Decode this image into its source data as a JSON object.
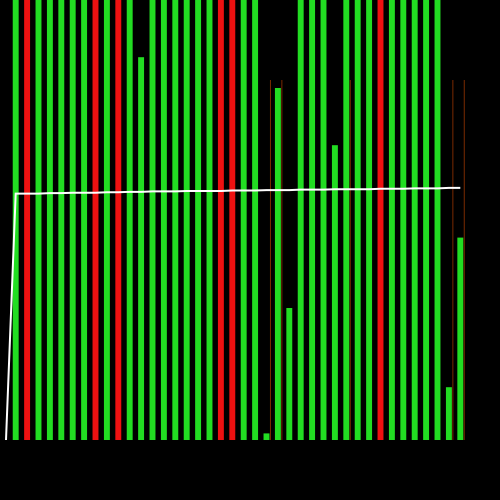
{
  "chart_data": {
    "type": "bar",
    "title": "",
    "subtitle": "",
    "xlabel": "",
    "ylabel": "",
    "ylim": [
      0,
      100
    ],
    "grid": false,
    "legend": "none",
    "colors": {
      "background": "#000000",
      "up": "#22dd22",
      "down": "#ee1111",
      "overlay_line": "#ffffff",
      "marker_line": "#7a2a00"
    },
    "categories": [
      "",
      "",
      "",
      "",
      "",
      "",
      "",
      "",
      "",
      "",
      "",
      "",
      "",
      "",
      "",
      "",
      "",
      "",
      "",
      "",
      "",
      "",
      "",
      "",
      "",
      "",
      "",
      "",
      "",
      "",
      "",
      "",
      "",
      "",
      "",
      "",
      "",
      "",
      "",
      ""
    ],
    "series": [
      {
        "values": [
          100,
          100,
          100,
          100,
          100,
          100,
          100,
          100,
          100,
          100,
          100,
          87,
          100,
          100,
          100,
          100,
          100,
          100,
          100,
          100,
          100,
          100,
          1.5,
          80,
          30,
          100,
          100,
          100,
          67,
          100,
          100,
          100,
          100,
          100,
          100,
          100,
          100,
          100,
          12,
          46
        ],
        "colors": [
          "#22dd22",
          "#ee1111",
          "#22dd22",
          "#22dd22",
          "#22dd22",
          "#22dd22",
          "#22dd22",
          "#ee1111",
          "#22dd22",
          "#ee1111",
          "#22dd22",
          "#22dd22",
          "#22dd22",
          "#22dd22",
          "#22dd22",
          "#22dd22",
          "#22dd22",
          "#22dd22",
          "#ee1111",
          "#ee1111",
          "#22dd22",
          "#22dd22",
          "#22dd22",
          "#22dd22",
          "#22dd22",
          "#22dd22",
          "#22dd22",
          "#22dd22",
          "#22dd22",
          "#22dd22",
          "#22dd22",
          "#22dd22",
          "#ee1111",
          "#22dd22",
          "#22dd22",
          "#22dd22",
          "#22dd22",
          "#22dd22",
          "#22dd22",
          "#22dd22"
        ]
      }
    ],
    "overlay_line": {
      "values": [
        56,
        56,
        56,
        56.1,
        56.1,
        56.2,
        56.2,
        56.2,
        56.3,
        56.3,
        56.4,
        56.4,
        56.5,
        56.5,
        56.5,
        56.6,
        56.6,
        56.6,
        56.6,
        56.7,
        56.7,
        56.7,
        56.8,
        56.8,
        56.8,
        56.9,
        56.9,
        56.9,
        57,
        57,
        57,
        57,
        57.1,
        57.1,
        57.1,
        57.2,
        57.2,
        57.2,
        57.3,
        57.3
      ]
    },
    "marker_lines_at": [
      22,
      23,
      29,
      38,
      39
    ]
  }
}
